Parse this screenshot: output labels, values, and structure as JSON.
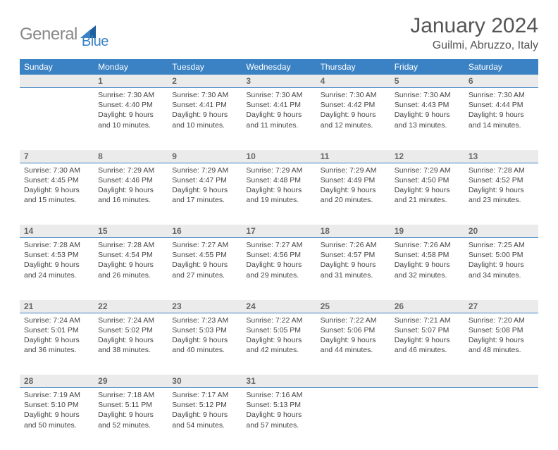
{
  "brand": {
    "part1": "General",
    "part2": "Blue"
  },
  "title": "January 2024",
  "location": "Guilmi, Abruzzo, Italy",
  "colors": {
    "header_bg": "#3b82c4",
    "header_text": "#ffffff",
    "daynum_bg": "#ebebeb",
    "daynum_border": "#3b82c4",
    "body_text": "#444444",
    "logo_gray": "#888888",
    "logo_blue": "#3b82c4"
  },
  "weekdays": [
    "Sunday",
    "Monday",
    "Tuesday",
    "Wednesday",
    "Thursday",
    "Friday",
    "Saturday"
  ],
  "weeks": [
    [
      null,
      {
        "n": "1",
        "sr": "7:30 AM",
        "ss": "4:40 PM",
        "dl": "9 hours and 10 minutes."
      },
      {
        "n": "2",
        "sr": "7:30 AM",
        "ss": "4:41 PM",
        "dl": "9 hours and 10 minutes."
      },
      {
        "n": "3",
        "sr": "7:30 AM",
        "ss": "4:41 PM",
        "dl": "9 hours and 11 minutes."
      },
      {
        "n": "4",
        "sr": "7:30 AM",
        "ss": "4:42 PM",
        "dl": "9 hours and 12 minutes."
      },
      {
        "n": "5",
        "sr": "7:30 AM",
        "ss": "4:43 PM",
        "dl": "9 hours and 13 minutes."
      },
      {
        "n": "6",
        "sr": "7:30 AM",
        "ss": "4:44 PM",
        "dl": "9 hours and 14 minutes."
      }
    ],
    [
      {
        "n": "7",
        "sr": "7:30 AM",
        "ss": "4:45 PM",
        "dl": "9 hours and 15 minutes."
      },
      {
        "n": "8",
        "sr": "7:29 AM",
        "ss": "4:46 PM",
        "dl": "9 hours and 16 minutes."
      },
      {
        "n": "9",
        "sr": "7:29 AM",
        "ss": "4:47 PM",
        "dl": "9 hours and 17 minutes."
      },
      {
        "n": "10",
        "sr": "7:29 AM",
        "ss": "4:48 PM",
        "dl": "9 hours and 19 minutes."
      },
      {
        "n": "11",
        "sr": "7:29 AM",
        "ss": "4:49 PM",
        "dl": "9 hours and 20 minutes."
      },
      {
        "n": "12",
        "sr": "7:29 AM",
        "ss": "4:50 PM",
        "dl": "9 hours and 21 minutes."
      },
      {
        "n": "13",
        "sr": "7:28 AM",
        "ss": "4:52 PM",
        "dl": "9 hours and 23 minutes."
      }
    ],
    [
      {
        "n": "14",
        "sr": "7:28 AM",
        "ss": "4:53 PM",
        "dl": "9 hours and 24 minutes."
      },
      {
        "n": "15",
        "sr": "7:28 AM",
        "ss": "4:54 PM",
        "dl": "9 hours and 26 minutes."
      },
      {
        "n": "16",
        "sr": "7:27 AM",
        "ss": "4:55 PM",
        "dl": "9 hours and 27 minutes."
      },
      {
        "n": "17",
        "sr": "7:27 AM",
        "ss": "4:56 PM",
        "dl": "9 hours and 29 minutes."
      },
      {
        "n": "18",
        "sr": "7:26 AM",
        "ss": "4:57 PM",
        "dl": "9 hours and 31 minutes."
      },
      {
        "n": "19",
        "sr": "7:26 AM",
        "ss": "4:58 PM",
        "dl": "9 hours and 32 minutes."
      },
      {
        "n": "20",
        "sr": "7:25 AM",
        "ss": "5:00 PM",
        "dl": "9 hours and 34 minutes."
      }
    ],
    [
      {
        "n": "21",
        "sr": "7:24 AM",
        "ss": "5:01 PM",
        "dl": "9 hours and 36 minutes."
      },
      {
        "n": "22",
        "sr": "7:24 AM",
        "ss": "5:02 PM",
        "dl": "9 hours and 38 minutes."
      },
      {
        "n": "23",
        "sr": "7:23 AM",
        "ss": "5:03 PM",
        "dl": "9 hours and 40 minutes."
      },
      {
        "n": "24",
        "sr": "7:22 AM",
        "ss": "5:05 PM",
        "dl": "9 hours and 42 minutes."
      },
      {
        "n": "25",
        "sr": "7:22 AM",
        "ss": "5:06 PM",
        "dl": "9 hours and 44 minutes."
      },
      {
        "n": "26",
        "sr": "7:21 AM",
        "ss": "5:07 PM",
        "dl": "9 hours and 46 minutes."
      },
      {
        "n": "27",
        "sr": "7:20 AM",
        "ss": "5:08 PM",
        "dl": "9 hours and 48 minutes."
      }
    ],
    [
      {
        "n": "28",
        "sr": "7:19 AM",
        "ss": "5:10 PM",
        "dl": "9 hours and 50 minutes."
      },
      {
        "n": "29",
        "sr": "7:18 AM",
        "ss": "5:11 PM",
        "dl": "9 hours and 52 minutes."
      },
      {
        "n": "30",
        "sr": "7:17 AM",
        "ss": "5:12 PM",
        "dl": "9 hours and 54 minutes."
      },
      {
        "n": "31",
        "sr": "7:16 AM",
        "ss": "5:13 PM",
        "dl": "9 hours and 57 minutes."
      },
      null,
      null,
      null
    ]
  ],
  "labels": {
    "sunrise": "Sunrise:",
    "sunset": "Sunset:",
    "daylight": "Daylight:"
  }
}
